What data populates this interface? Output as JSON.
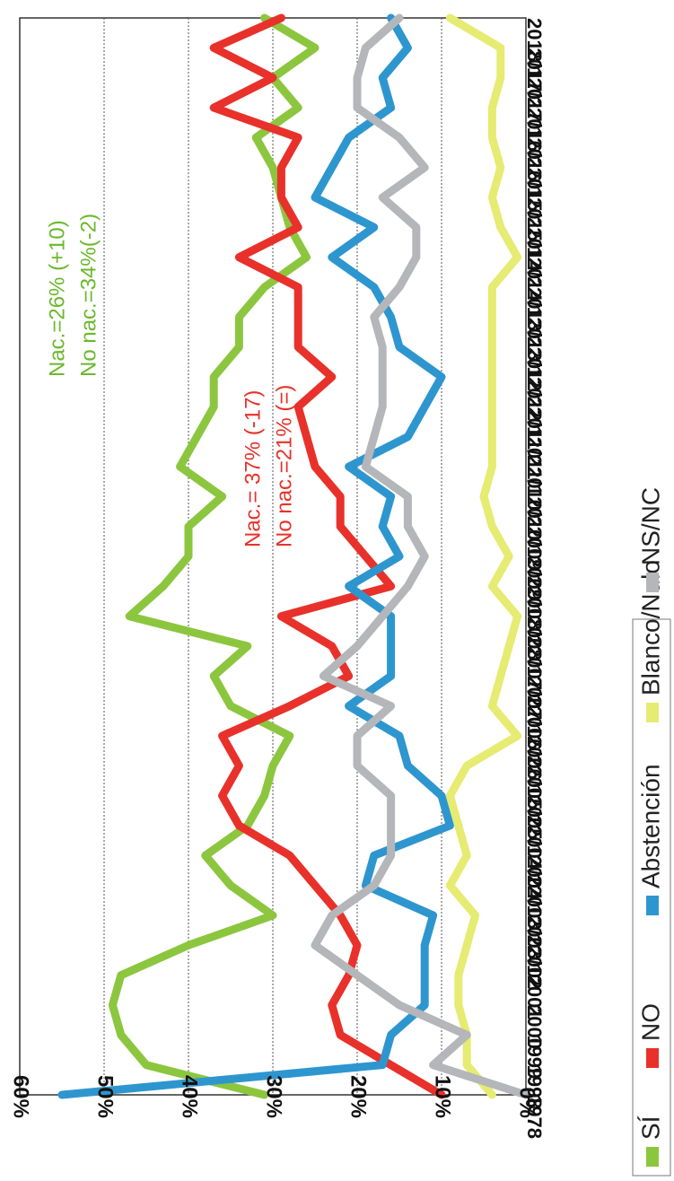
{
  "chart_data": {
    "type": "line",
    "title": "",
    "xlabel": "",
    "ylabel": "",
    "ylim": [
      0,
      60
    ],
    "y_ticks": [
      "0%",
      "10%",
      "20%",
      "30%",
      "40%",
      "50%",
      "60%"
    ],
    "grid": true,
    "orientation": "rotated 90° clockwise",
    "legend_position": "right",
    "categories": [
      "1978",
      "1998",
      "1999",
      "2000",
      "2001",
      "2002",
      "2003/1",
      "2003/2",
      "2004/1",
      "2004/2",
      "2005/1",
      "2005/2",
      "2006/1",
      "2006/2",
      "2007/1",
      "2007/2",
      "2008/1",
      "2008/2",
      "2009/1",
      "2009/2",
      "2010/1",
      "2010/2",
      "2011/1",
      "2011/2",
      "2012/1",
      "2012/2",
      "2013/1",
      "2013/2",
      "2014/1",
      "2014/2",
      "2015/1",
      "2015/2",
      "2016/1",
      "2016/2",
      "2017/1",
      "2017/2",
      "2018/1"
    ],
    "series": [
      {
        "name": "SÍ",
        "color": "#8cc63f",
        "values": [
          31,
          45,
          48,
          49,
          48,
          40,
          30,
          35,
          38,
          33,
          31,
          30,
          28,
          35,
          37,
          33,
          47,
          43,
          40,
          40,
          36,
          41,
          39,
          37,
          37,
          34,
          34,
          31,
          26,
          28,
          29,
          30,
          32,
          27,
          30,
          25,
          31
        ]
      },
      {
        "name": "NO",
        "color": "#e8312a",
        "values": [
          10,
          16,
          22,
          23,
          21,
          20,
          22,
          25,
          28,
          34,
          36,
          34,
          36,
          28,
          21,
          23,
          29,
          16,
          19,
          22,
          22,
          25,
          26,
          27,
          23,
          27,
          27,
          27,
          34,
          27,
          29,
          29,
          27,
          37,
          30,
          37,
          29
        ]
      },
      {
        "name": "Abstención",
        "color": "#2e96cf",
        "values": [
          55,
          17,
          16,
          12,
          12,
          12,
          11,
          19,
          18,
          9,
          10,
          14,
          15,
          21,
          16,
          16,
          16,
          21,
          15,
          17,
          16,
          21,
          14,
          12,
          10,
          15,
          16,
          18,
          23,
          18,
          25,
          23,
          21,
          16,
          17,
          14,
          16
        ]
      },
      {
        "name": "Blanco/Nulo",
        "color": "#e6eb72",
        "values": [
          4,
          7,
          7,
          8,
          8,
          7,
          6,
          9,
          7,
          8,
          9,
          7,
          1,
          4,
          3,
          2,
          1,
          4,
          2,
          4,
          5,
          4,
          4,
          4,
          4,
          4,
          4,
          4,
          1,
          3,
          4,
          3,
          4,
          4,
          3,
          3,
          9
        ]
      },
      {
        "name": "NS/NC",
        "color": "#b4b6b9",
        "values": [
          0,
          11,
          7,
          15,
          20,
          25,
          23,
          18,
          16,
          16,
          16,
          20,
          20,
          16,
          24,
          20,
          17,
          14,
          12,
          14,
          14,
          19,
          18,
          17,
          17,
          17,
          18,
          15,
          13,
          13,
          17,
          12,
          15,
          20,
          20,
          19,
          15
        ]
      }
    ],
    "annotations": [
      {
        "id": "no",
        "color": "#e8312a",
        "lines": [
          "Nac.= 37% (-17)",
          "No nac.=21% (=)"
        ]
      },
      {
        "id": "si",
        "color": "#6bb82c",
        "lines": [
          "Nac.=26% (+10)",
          "No nac.=34%(-2)"
        ]
      }
    ]
  }
}
